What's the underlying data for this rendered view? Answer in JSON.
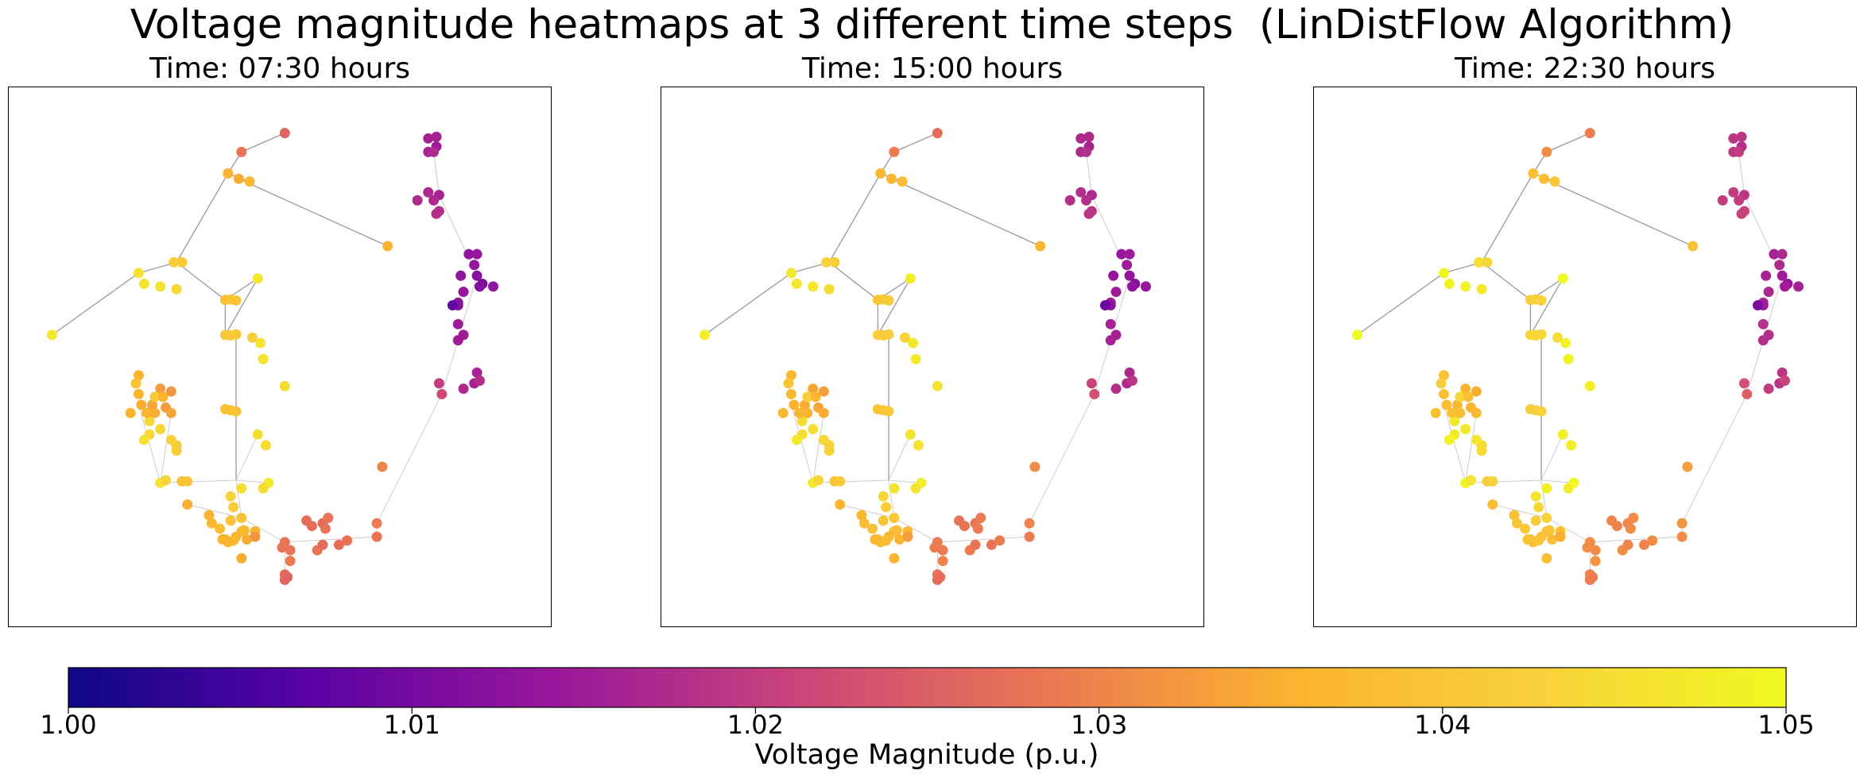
{
  "chart_data": {
    "type": "network-heatmap",
    "title": "Voltage magnitude heatmaps at 3 different time steps  (LinDistFlow Algorithm)",
    "colormap": "plasma",
    "color_range": [
      1.0,
      1.05
    ],
    "colorbar": {
      "label": "Voltage Magnitude (p.u.)",
      "ticks": [
        "1.00",
        "1.01",
        "1.02",
        "1.03",
        "1.04",
        "1.05"
      ]
    },
    "panels": [
      {
        "title": "Time: 07:30 hours",
        "voltage_offset": 0.0
      },
      {
        "title": "Time: 15:00 hours",
        "voltage_offset": 0.001
      },
      {
        "title": "Time: 22:30 hours",
        "voltage_offset": 0.003
      }
    ],
    "nodes": [
      {
        "x": 0.51,
        "y": 0.915,
        "v": 1.026
      },
      {
        "x": 0.43,
        "y": 0.875,
        "v": 1.035
      },
      {
        "x": 0.4,
        "y": 0.84,
        "v": 1.037
      },
      {
        "x": 0.43,
        "y": 0.825,
        "v": 1.037
      },
      {
        "x": 0.455,
        "y": 0.825,
        "v": 1.036
      },
      {
        "x": 0.69,
        "y": 0.705,
        "v": 1.03
      },
      {
        "x": 0.31,
        "y": 0.675,
        "v": 1.042
      },
      {
        "x": 0.31,
        "y": 0.665,
        "v": 1.042
      },
      {
        "x": 0.3,
        "y": 0.655,
        "v": 1.043
      },
      {
        "x": 0.26,
        "y": 0.62,
        "v": 1.044
      },
      {
        "x": 0.26,
        "y": 0.645,
        "v": 1.044
      },
      {
        "x": 0.28,
        "y": 0.635,
        "v": 1.044
      },
      {
        "x": 0.25,
        "y": 0.655,
        "v": 1.046
      },
      {
        "x": 0.46,
        "y": 0.645,
        "v": 1.045
      },
      {
        "x": 0.475,
        "y": 0.665,
        "v": 1.045
      },
      {
        "x": 0.41,
        "y": 0.6,
        "v": 1.039
      },
      {
        "x": 0.42,
        "y": 0.602,
        "v": 1.04
      },
      {
        "x": 0.4,
        "y": 0.598,
        "v": 1.039
      },
      {
        "x": 0.51,
        "y": 0.555,
        "v": 1.045
      },
      {
        "x": 0.47,
        "y": 0.505,
        "v": 1.046
      },
      {
        "x": 0.465,
        "y": 0.475,
        "v": 1.046
      },
      {
        "x": 0.08,
        "y": 0.46,
        "v": 1.047
      },
      {
        "x": 0.4,
        "y": 0.46,
        "v": 1.041
      },
      {
        "x": 0.41,
        "y": 0.461,
        "v": 1.041
      },
      {
        "x": 0.42,
        "y": 0.459,
        "v": 1.041
      },
      {
        "x": 0.45,
        "y": 0.465,
        "v": 1.042
      },
      {
        "x": 0.7,
        "y": 0.295,
        "v": 1.036
      },
      {
        "x": 0.43,
        "y": 0.12,
        "v": 1.028
      },
      {
        "x": 0.51,
        "y": 0.085,
        "v": 1.026
      },
      {
        "x": 0.405,
        "y": 0.16,
        "v": 1.036
      },
      {
        "x": 0.425,
        "y": 0.17,
        "v": 1.035
      },
      {
        "x": 0.445,
        "y": 0.175,
        "v": 1.037
      },
      {
        "x": 0.305,
        "y": 0.325,
        "v": 1.042
      },
      {
        "x": 0.32,
        "y": 0.325,
        "v": 1.041
      },
      {
        "x": 0.24,
        "y": 0.345,
        "v": 1.046
      },
      {
        "x": 0.25,
        "y": 0.365,
        "v": 1.046
      },
      {
        "x": 0.28,
        "y": 0.37,
        "v": 1.046
      },
      {
        "x": 0.31,
        "y": 0.375,
        "v": 1.044
      },
      {
        "x": 0.46,
        "y": 0.355,
        "v": 1.047
      },
      {
        "x": 0.4,
        "y": 0.395,
        "v": 1.039
      },
      {
        "x": 0.41,
        "y": 0.394,
        "v": 1.04
      },
      {
        "x": 0.42,
        "y": 0.396,
        "v": 1.04
      },
      {
        "x": 0.24,
        "y": 0.535,
        "v": 1.036
      },
      {
        "x": 0.235,
        "y": 0.55,
        "v": 1.039
      },
      {
        "x": 0.24,
        "y": 0.57,
        "v": 1.036
      },
      {
        "x": 0.245,
        "y": 0.59,
        "v": 1.035
      },
      {
        "x": 0.225,
        "y": 0.605,
        "v": 1.036
      },
      {
        "x": 0.265,
        "y": 0.59,
        "v": 1.034
      },
      {
        "x": 0.28,
        "y": 0.56,
        "v": 1.033
      },
      {
        "x": 0.3,
        "y": 0.565,
        "v": 1.032
      },
      {
        "x": 0.27,
        "y": 0.575,
        "v": 1.041
      },
      {
        "x": 0.255,
        "y": 0.605,
        "v": 1.036
      },
      {
        "x": 0.27,
        "y": 0.605,
        "v": 1.035
      },
      {
        "x": 0.29,
        "y": 0.595,
        "v": 1.033
      },
      {
        "x": 0.3,
        "y": 0.605,
        "v": 1.034
      },
      {
        "x": 0.285,
        "y": 0.575,
        "v": 1.036
      },
      {
        "x": 0.33,
        "y": 0.775,
        "v": 1.035
      },
      {
        "x": 0.37,
        "y": 0.795,
        "v": 1.036
      },
      {
        "x": 0.375,
        "y": 0.81,
        "v": 1.037
      },
      {
        "x": 0.39,
        "y": 0.82,
        "v": 1.038
      },
      {
        "x": 0.41,
        "y": 0.805,
        "v": 1.039
      },
      {
        "x": 0.42,
        "y": 0.835,
        "v": 1.036
      },
      {
        "x": 0.44,
        "y": 0.84,
        "v": 1.035
      },
      {
        "x": 0.455,
        "y": 0.835,
        "v": 1.032
      },
      {
        "x": 0.395,
        "y": 0.84,
        "v": 1.036
      },
      {
        "x": 0.405,
        "y": 0.845,
        "v": 1.036
      },
      {
        "x": 0.415,
        "y": 0.842,
        "v": 1.037
      },
      {
        "x": 0.435,
        "y": 0.823,
        "v": 1.037
      },
      {
        "x": 0.43,
        "y": 0.8,
        "v": 1.04
      },
      {
        "x": 0.415,
        "y": 0.78,
        "v": 1.041
      },
      {
        "x": 0.41,
        "y": 0.76,
        "v": 1.043
      },
      {
        "x": 0.43,
        "y": 0.745,
        "v": 1.045
      },
      {
        "x": 0.48,
        "y": 0.735,
        "v": 1.047
      },
      {
        "x": 0.47,
        "y": 0.745,
        "v": 1.045
      },
      {
        "x": 0.28,
        "y": 0.735,
        "v": 1.046
      },
      {
        "x": 0.29,
        "y": 0.73,
        "v": 1.043
      },
      {
        "x": 0.32,
        "y": 0.732,
        "v": 1.039
      },
      {
        "x": 0.33,
        "y": 0.732,
        "v": 1.04
      },
      {
        "x": 0.51,
        "y": 0.845,
        "v": 1.028
      },
      {
        "x": 0.505,
        "y": 0.855,
        "v": 1.028
      },
      {
        "x": 0.52,
        "y": 0.86,
        "v": 1.028
      },
      {
        "x": 0.52,
        "y": 0.88,
        "v": 1.029
      },
      {
        "x": 0.51,
        "y": 0.905,
        "v": 1.027
      },
      {
        "x": 0.515,
        "y": 0.91,
        "v": 1.026
      },
      {
        "x": 0.55,
        "y": 0.805,
        "v": 1.027
      },
      {
        "x": 0.56,
        "y": 0.815,
        "v": 1.027
      },
      {
        "x": 0.58,
        "y": 0.81,
        "v": 1.027
      },
      {
        "x": 0.585,
        "y": 0.82,
        "v": 1.028
      },
      {
        "x": 0.57,
        "y": 0.86,
        "v": 1.028
      },
      {
        "x": 0.58,
        "y": 0.85,
        "v": 1.027
      },
      {
        "x": 0.61,
        "y": 0.85,
        "v": 1.027
      },
      {
        "x": 0.68,
        "y": 0.835,
        "v": 1.028
      },
      {
        "x": 0.68,
        "y": 0.81,
        "v": 1.029
      },
      {
        "x": 0.59,
        "y": 0.8,
        "v": 1.028
      },
      {
        "x": 0.625,
        "y": 0.842,
        "v": 1.028
      },
      {
        "x": 0.775,
        "y": 0.095,
        "v": 1.016
      },
      {
        "x": 0.79,
        "y": 0.092,
        "v": 1.016
      },
      {
        "x": 0.79,
        "y": 0.11,
        "v": 1.015
      },
      {
        "x": 0.775,
        "y": 0.12,
        "v": 1.016
      },
      {
        "x": 0.785,
        "y": 0.12,
        "v": 1.017
      },
      {
        "x": 0.795,
        "y": 0.2,
        "v": 1.016
      },
      {
        "x": 0.775,
        "y": 0.195,
        "v": 1.017
      },
      {
        "x": 0.785,
        "y": 0.21,
        "v": 1.017
      },
      {
        "x": 0.755,
        "y": 0.21,
        "v": 1.017
      },
      {
        "x": 0.79,
        "y": 0.235,
        "v": 1.018
      },
      {
        "x": 0.795,
        "y": 0.23,
        "v": 1.018
      },
      {
        "x": 0.85,
        "y": 0.31,
        "v": 1.013
      },
      {
        "x": 0.865,
        "y": 0.31,
        "v": 1.014
      },
      {
        "x": 0.86,
        "y": 0.33,
        "v": 1.014
      },
      {
        "x": 0.865,
        "y": 0.35,
        "v": 1.012
      },
      {
        "x": 0.875,
        "y": 0.365,
        "v": 1.011
      },
      {
        "x": 0.895,
        "y": 0.37,
        "v": 1.013
      },
      {
        "x": 0.87,
        "y": 0.37,
        "v": 1.012
      },
      {
        "x": 0.835,
        "y": 0.35,
        "v": 1.013
      },
      {
        "x": 0.84,
        "y": 0.38,
        "v": 1.014
      },
      {
        "x": 0.83,
        "y": 0.4,
        "v": 1.014
      },
      {
        "x": 0.83,
        "y": 0.405,
        "v": 1.012
      },
      {
        "x": 0.82,
        "y": 0.405,
        "v": 1.008
      },
      {
        "x": 0.83,
        "y": 0.44,
        "v": 1.015
      },
      {
        "x": 0.83,
        "y": 0.47,
        "v": 1.015
      },
      {
        "x": 0.84,
        "y": 0.46,
        "v": 1.015
      },
      {
        "x": 0.865,
        "y": 0.53,
        "v": 1.016
      },
      {
        "x": 0.86,
        "y": 0.55,
        "v": 1.016
      },
      {
        "x": 0.87,
        "y": 0.545,
        "v": 1.018
      },
      {
        "x": 0.84,
        "y": 0.56,
        "v": 1.017
      },
      {
        "x": 0.795,
        "y": 0.55,
        "v": 1.02
      },
      {
        "x": 0.8,
        "y": 0.57,
        "v": 1.022
      }
    ],
    "edges": [
      [
        0.43,
        0.12,
        0.51,
        0.085
      ],
      [
        0.43,
        0.12,
        0.405,
        0.16
      ],
      [
        0.405,
        0.16,
        0.445,
        0.175
      ],
      [
        0.425,
        0.17,
        0.7,
        0.295
      ],
      [
        0.405,
        0.16,
        0.31,
        0.325
      ],
      [
        0.31,
        0.325,
        0.4,
        0.395
      ],
      [
        0.31,
        0.325,
        0.24,
        0.345
      ],
      [
        0.24,
        0.345,
        0.08,
        0.46
      ],
      [
        0.4,
        0.395,
        0.46,
        0.355
      ],
      [
        0.4,
        0.395,
        0.4,
        0.46
      ],
      [
        0.4,
        0.46,
        0.46,
        0.355
      ],
      [
        0.42,
        0.46,
        0.42,
        0.73
      ],
      [
        0.42,
        0.73,
        0.28,
        0.735
      ],
      [
        0.42,
        0.73,
        0.48,
        0.735
      ],
      [
        0.42,
        0.73,
        0.43,
        0.8
      ],
      [
        0.43,
        0.8,
        0.51,
        0.845
      ],
      [
        0.51,
        0.845,
        0.51,
        0.915
      ],
      [
        0.51,
        0.845,
        0.68,
        0.835
      ],
      [
        0.68,
        0.835,
        0.68,
        0.81
      ],
      [
        0.68,
        0.81,
        0.8,
        0.57
      ],
      [
        0.8,
        0.57,
        0.83,
        0.47
      ],
      [
        0.83,
        0.47,
        0.865,
        0.35
      ],
      [
        0.865,
        0.35,
        0.795,
        0.2
      ],
      [
        0.795,
        0.2,
        0.785,
        0.12
      ],
      [
        0.33,
        0.775,
        0.43,
        0.8
      ],
      [
        0.3,
        0.605,
        0.28,
        0.735
      ],
      [
        0.46,
        0.645,
        0.42,
        0.73
      ],
      [
        0.28,
        0.735,
        0.24,
        0.59
      ]
    ]
  }
}
